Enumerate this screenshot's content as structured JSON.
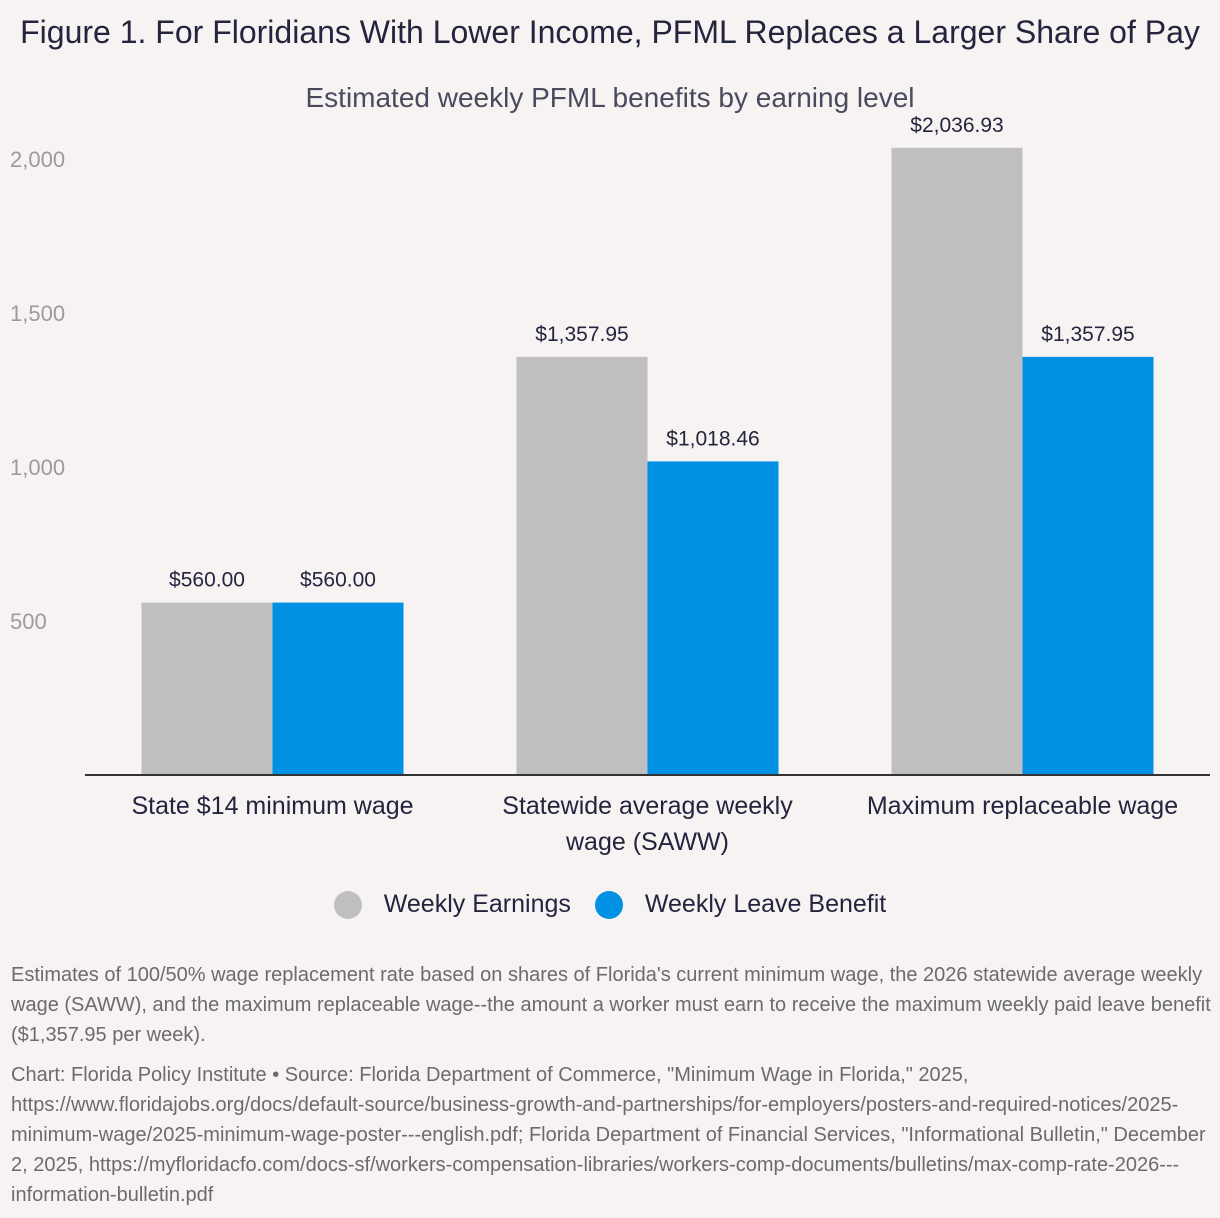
{
  "header": {
    "title": "Figure 1. For Floridians With Lower Income, PFML Replaces a Larger Share of Pay",
    "subtitle": "Estimated weekly PFML benefits by earning level"
  },
  "colors": {
    "earnings": "#bfbfbf",
    "benefit": "#0090e4",
    "axis": "#333333",
    "background": "#f7f3f2"
  },
  "chart_data": {
    "type": "bar",
    "title": "Figure 1. For Floridians With Lower Income, PFML Replaces a Larger Share of Pay",
    "subtitle": "Estimated weekly PFML benefits by earning level",
    "categories": [
      [
        "State $14 minimum wage"
      ],
      [
        "Statewide average weekly",
        "wage (SAWW)"
      ],
      [
        "Maximum replaceable wage"
      ]
    ],
    "series": [
      {
        "name": "Weekly Earnings",
        "values": [
          560.0,
          1357.95,
          2036.93
        ],
        "labels": [
          "$560.00",
          "$1,357.95",
          "$2,036.93"
        ]
      },
      {
        "name": "Weekly Leave Benefit",
        "values": [
          560.0,
          1018.46,
          1357.95
        ],
        "labels": [
          "$560.00",
          "$1,018.46",
          "$1,357.95"
        ]
      }
    ],
    "yticks": [
      500,
      1000,
      1500,
      2000
    ],
    "ytick_labels": [
      "500",
      "1,000",
      "1,500",
      "2,000"
    ],
    "ylim": [
      0,
      2150
    ],
    "xlabel": "",
    "ylabel": "",
    "grid": false,
    "legend_position": "bottom-center"
  },
  "legend": {
    "items": [
      {
        "label": "Weekly Earnings"
      },
      {
        "label": "Weekly Leave Benefit"
      }
    ]
  },
  "footer": {
    "note": "Estimates of 100/50% wage replacement rate based on shares of Florida's current minimum wage, the 2026 statewide average weekly wage (SAWW), and the maximum replaceable wage--the amount a worker must earn to receive the maximum weekly paid leave benefit ($1,357.95 per week).",
    "source": "Chart: Florida Policy Institute • Source: Florida Department of Commerce, \"Minimum Wage in Florida,\" 2025, https://www.floridajobs.org/docs/default-source/business-growth-and-partnerships/for-employers/posters-and-required-notices/2025-minimum-wage/2025-minimum-wage-poster---english.pdf; Florida Department of Financial Services, \"Informational Bulletin,\" December 2, 2025, https://myfloridacfo.com/docs-sf/workers-compensation-libraries/workers-comp-documents/bulletins/max-comp-rate-2026---information-bulletin.pdf"
  }
}
